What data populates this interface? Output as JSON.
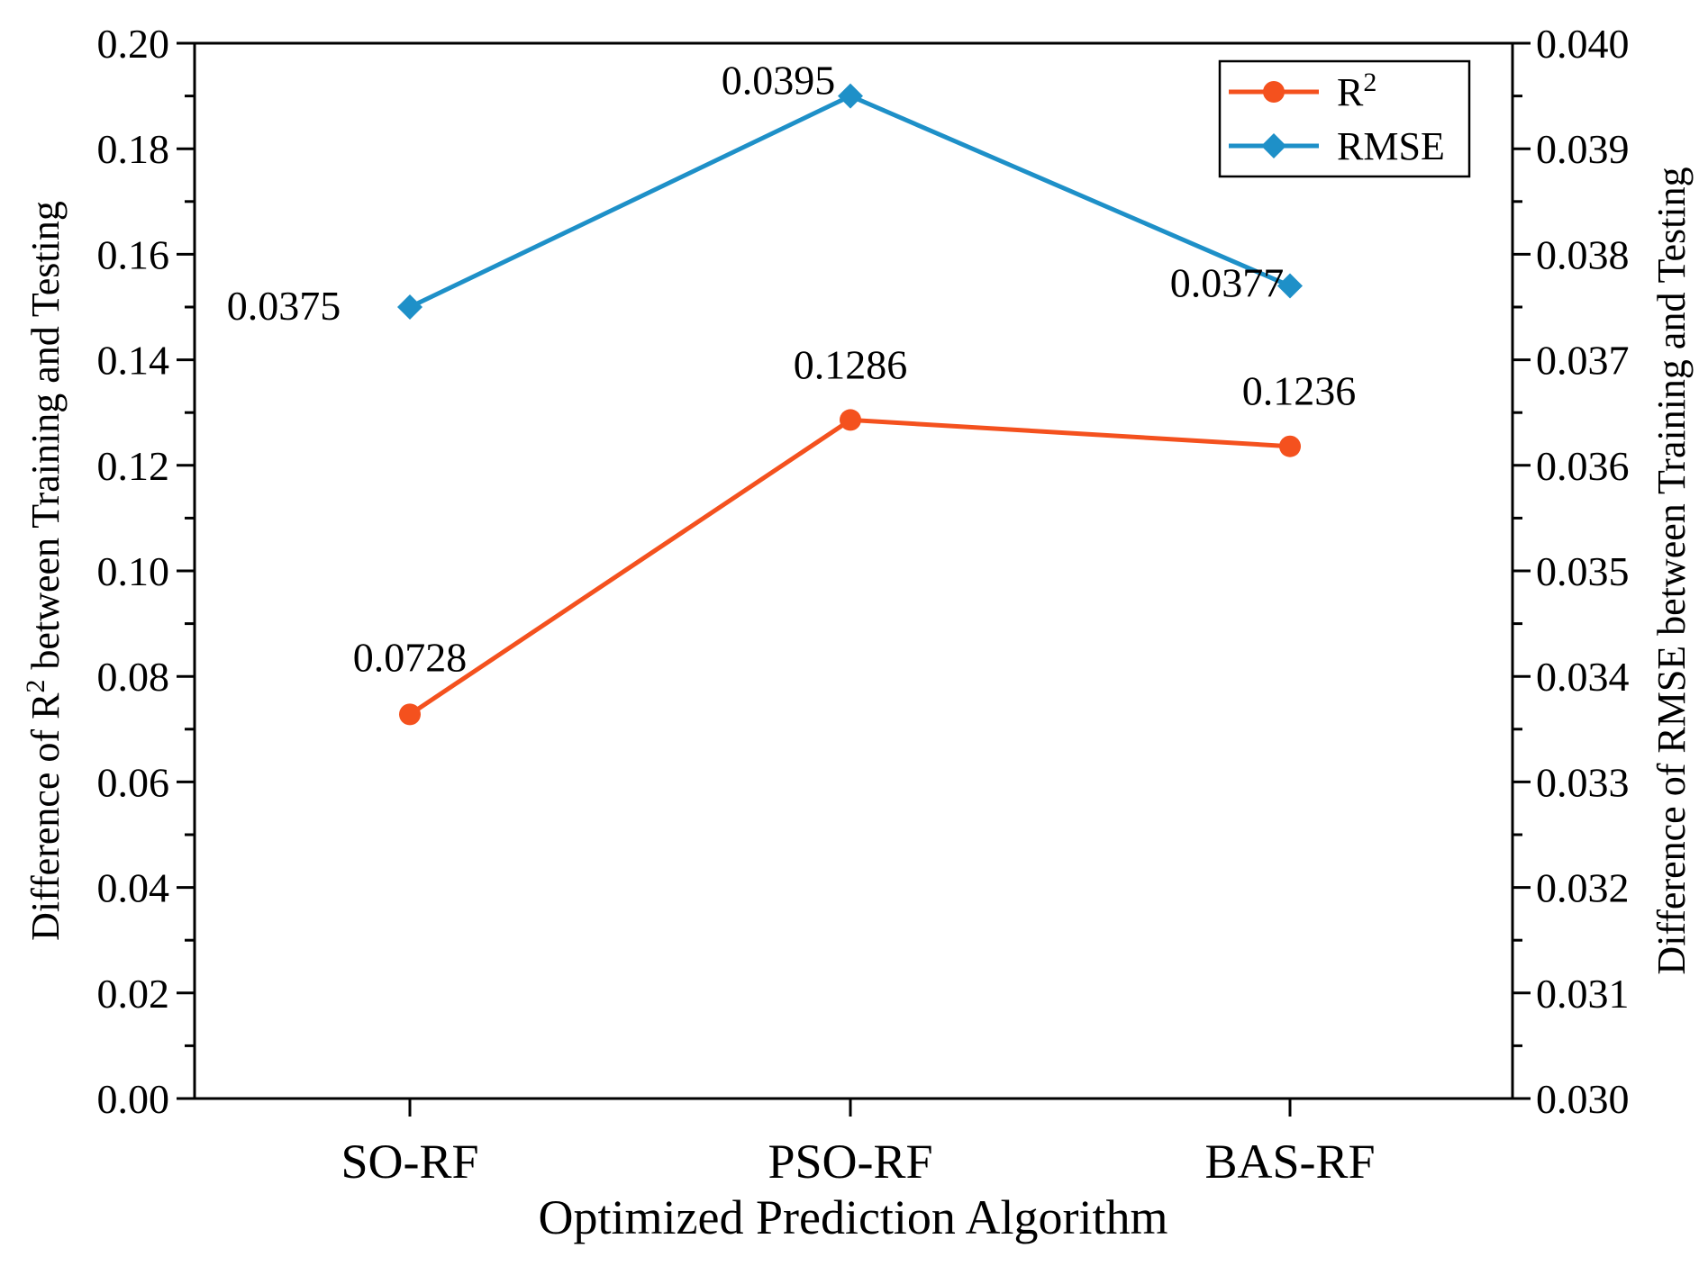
{
  "colors": {
    "r2": "#F4511E",
    "rmse": "#1E90C8",
    "axis": "#000000"
  },
  "chart_data": {
    "type": "line",
    "xlabel": "Optimized Prediction Algorithm",
    "ylabel_left": {
      "prefix": "Difference of R",
      "sup": "2",
      "suffix": " between Training and Testing"
    },
    "ylabel_right": "Difference of RMSE between Training and Testing",
    "categories": [
      "SO-RF",
      "PSO-RF",
      "BAS-RF"
    ],
    "y_left": {
      "ylim": [
        0,
        0.2
      ],
      "ticks": [
        "0.00",
        "0.02",
        "0.04",
        "0.06",
        "0.08",
        "0.10",
        "0.12",
        "0.14",
        "0.16",
        "0.18",
        "0.20"
      ]
    },
    "y_right": {
      "ylim": [
        0.03,
        0.04
      ],
      "ticks": [
        "0.030",
        "0.031",
        "0.032",
        "0.033",
        "0.034",
        "0.035",
        "0.036",
        "0.037",
        "0.038",
        "0.039",
        "0.040"
      ]
    },
    "series": [
      {
        "name": "R",
        "name_sup": "2",
        "axis": "left",
        "marker": "circle",
        "color": "#F4511E",
        "values": [
          0.0728,
          0.1286,
          0.1236
        ],
        "labels": [
          "0.0728",
          "0.1286",
          "0.1236"
        ]
      },
      {
        "name": "RMSE",
        "axis": "right",
        "marker": "diamond",
        "color": "#1E90C8",
        "values": [
          0.0375,
          0.0395,
          0.0377
        ],
        "labels": [
          "0.0375",
          "0.0395",
          "0.0377"
        ]
      }
    ],
    "legend_position": "top-right",
    "grid": false
  }
}
